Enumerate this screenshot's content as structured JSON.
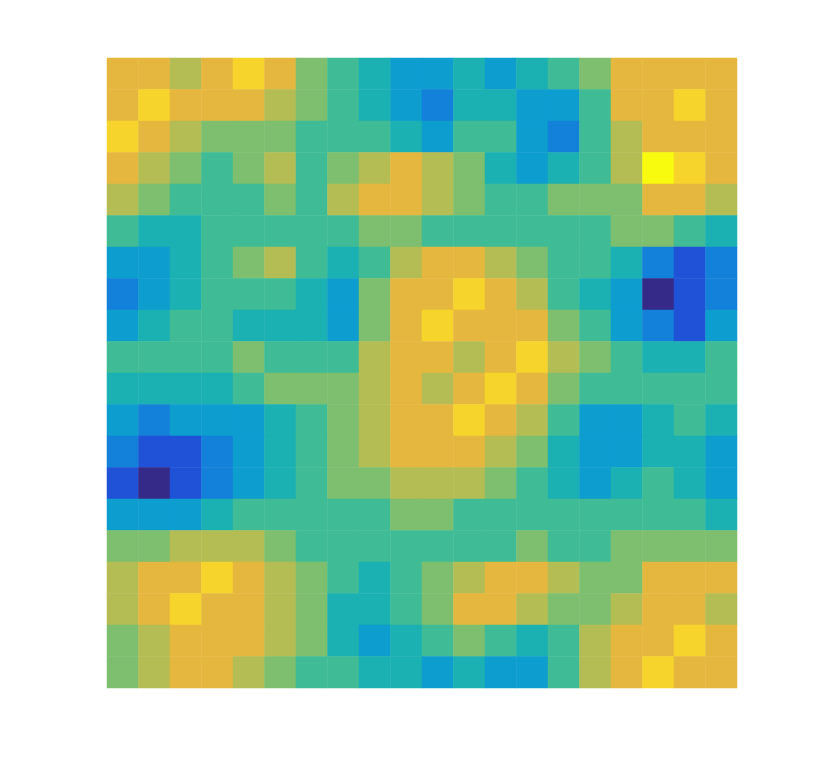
{
  "chart_data": {
    "type": "heatmap",
    "tick_labels": false,
    "zlim": [
      0,
      10
    ],
    "cells": [
      [
        8,
        8,
        7,
        8,
        9,
        8,
        6,
        5,
        4,
        3,
        3,
        4,
        3,
        4,
        5,
        6,
        8,
        8,
        8,
        8
      ],
      [
        8,
        9,
        8,
        8,
        8,
        7,
        6,
        5,
        4,
        3,
        2,
        4,
        4,
        3,
        3,
        5,
        8,
        8,
        9,
        8
      ],
      [
        9,
        8,
        7,
        6,
        6,
        6,
        5,
        5,
        5,
        4,
        3,
        5,
        5,
        3,
        2,
        5,
        7,
        8,
        8,
        8
      ],
      [
        8,
        7,
        6,
        5,
        6,
        7,
        5,
        6,
        7,
        8,
        7,
        6,
        4,
        3,
        4,
        5,
        7,
        10,
        9,
        8
      ],
      [
        7,
        6,
        5,
        5,
        5,
        6,
        5,
        7,
        8,
        8,
        7,
        6,
        5,
        5,
        6,
        6,
        6,
        8,
        8,
        7
      ],
      [
        5,
        4,
        4,
        5,
        5,
        5,
        5,
        5,
        6,
        6,
        5,
        5,
        5,
        5,
        5,
        5,
        6,
        6,
        5,
        4
      ],
      [
        3,
        3,
        4,
        5,
        6,
        7,
        5,
        4,
        5,
        7,
        8,
        8,
        7,
        6,
        5,
        5,
        4,
        2,
        1,
        2
      ],
      [
        2,
        3,
        4,
        5,
        5,
        5,
        4,
        3,
        6,
        8,
        8,
        9,
        8,
        7,
        5,
        4,
        3,
        0,
        1,
        2
      ],
      [
        3,
        4,
        5,
        5,
        4,
        4,
        4,
        3,
        6,
        8,
        9,
        8,
        8,
        8,
        6,
        5,
        3,
        2,
        1,
        3
      ],
      [
        5,
        5,
        5,
        5,
        6,
        5,
        5,
        5,
        7,
        8,
        8,
        7,
        8,
        9,
        7,
        6,
        5,
        4,
        4,
        5
      ],
      [
        4,
        4,
        4,
        4,
        5,
        6,
        6,
        6,
        7,
        8,
        7,
        8,
        9,
        8,
        6,
        5,
        5,
        5,
        5,
        5
      ],
      [
        3,
        2,
        3,
        3,
        3,
        4,
        5,
        6,
        7,
        8,
        8,
        9,
        8,
        7,
        5,
        3,
        3,
        4,
        5,
        4
      ],
      [
        2,
        1,
        1,
        2,
        3,
        4,
        5,
        6,
        7,
        8,
        8,
        8,
        7,
        6,
        4,
        3,
        3,
        4,
        4,
        3
      ],
      [
        1,
        0,
        1,
        2,
        3,
        4,
        5,
        6,
        6,
        7,
        7,
        7,
        6,
        5,
        4,
        3,
        4,
        5,
        4,
        3
      ],
      [
        3,
        3,
        3,
        4,
        5,
        5,
        5,
        5,
        5,
        6,
        6,
        5,
        5,
        5,
        5,
        5,
        5,
        5,
        5,
        4
      ],
      [
        6,
        6,
        7,
        7,
        7,
        6,
        5,
        5,
        5,
        5,
        5,
        5,
        5,
        6,
        5,
        5,
        6,
        6,
        6,
        6
      ],
      [
        7,
        8,
        8,
        9,
        8,
        7,
        6,
        5,
        4,
        5,
        6,
        7,
        8,
        8,
        7,
        6,
        6,
        8,
        8,
        8
      ],
      [
        7,
        8,
        9,
        8,
        8,
        7,
        6,
        4,
        4,
        5,
        6,
        8,
        8,
        7,
        6,
        6,
        7,
        8,
        8,
        7
      ],
      [
        6,
        7,
        8,
        8,
        8,
        7,
        6,
        4,
        3,
        4,
        5,
        6,
        5,
        4,
        5,
        7,
        8,
        8,
        9,
        8
      ],
      [
        6,
        7,
        8,
        8,
        7,
        6,
        5,
        5,
        4,
        4,
        3,
        4,
        3,
        3,
        5,
        7,
        8,
        9,
        8,
        8
      ]
    ]
  }
}
